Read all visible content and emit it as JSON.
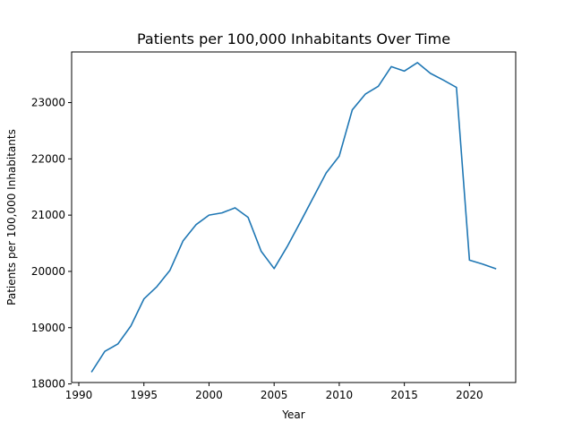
{
  "chart_data": {
    "type": "line",
    "title": "Patients per 100,000 Inhabitants Over Time",
    "xlabel": "Year",
    "ylabel": "Patients per 100,000 Inhabitants",
    "xlim": [
      1989.45,
      2023.55
    ],
    "ylim": [
      18025,
      23900
    ],
    "x_ticks": [
      1990,
      1995,
      2000,
      2005,
      2010,
      2015,
      2020
    ],
    "y_ticks": [
      18000,
      19000,
      20000,
      21000,
      22000,
      23000
    ],
    "grid": false,
    "legend": "none",
    "line_color": "#1f77b4",
    "x": [
      1991,
      1992,
      1993,
      1994,
      1995,
      1996,
      1997,
      1998,
      1999,
      2000,
      2001,
      2002,
      2003,
      2004,
      2005,
      2006,
      2007,
      2008,
      2009,
      2010,
      2011,
      2012,
      2013,
      2014,
      2015,
      2016,
      2017,
      2018,
      2019,
      2020,
      2021,
      2022
    ],
    "series": [
      {
        "values": [
          18220,
          18580,
          18710,
          19030,
          19510,
          19730,
          20020,
          20540,
          20830,
          21000,
          21040,
          21130,
          20960,
          20360,
          20050,
          20440,
          20870,
          21310,
          21750,
          22050,
          22870,
          23150,
          23290,
          23640,
          23560,
          23710,
          23520,
          23400,
          23270,
          20200,
          20130,
          20050
        ]
      }
    ]
  }
}
